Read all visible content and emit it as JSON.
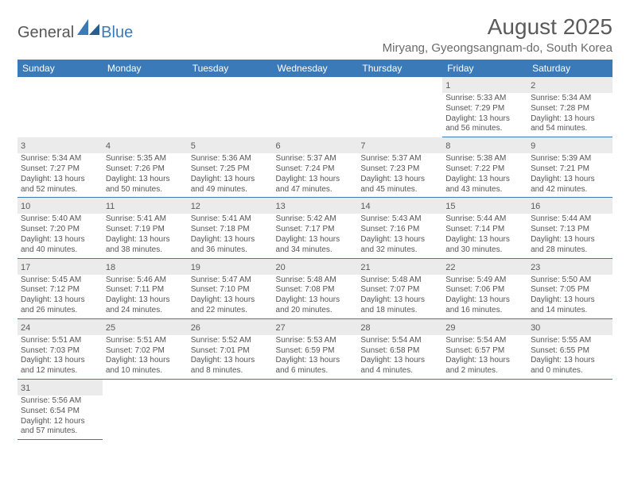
{
  "brand": {
    "part1": "General",
    "part2": "Blue"
  },
  "title": "August 2025",
  "location": "Miryang, Gyeongsangnam-do, South Korea",
  "colors": {
    "header_bg": "#3a7ab8",
    "header_text": "#ffffff",
    "daynum_bg": "#ebebeb",
    "cell_border": "#3a7ab8",
    "text": "#4a4a4a"
  },
  "day_headers": [
    "Sunday",
    "Monday",
    "Tuesday",
    "Wednesday",
    "Thursday",
    "Friday",
    "Saturday"
  ],
  "weeks": [
    [
      null,
      null,
      null,
      null,
      null,
      {
        "n": "1",
        "sr": "5:33 AM",
        "ss": "7:29 PM",
        "dl": "13 hours and 56 minutes."
      },
      {
        "n": "2",
        "sr": "5:34 AM",
        "ss": "7:28 PM",
        "dl": "13 hours and 54 minutes."
      }
    ],
    [
      {
        "n": "3",
        "sr": "5:34 AM",
        "ss": "7:27 PM",
        "dl": "13 hours and 52 minutes."
      },
      {
        "n": "4",
        "sr": "5:35 AM",
        "ss": "7:26 PM",
        "dl": "13 hours and 50 minutes."
      },
      {
        "n": "5",
        "sr": "5:36 AM",
        "ss": "7:25 PM",
        "dl": "13 hours and 49 minutes."
      },
      {
        "n": "6",
        "sr": "5:37 AM",
        "ss": "7:24 PM",
        "dl": "13 hours and 47 minutes."
      },
      {
        "n": "7",
        "sr": "5:37 AM",
        "ss": "7:23 PM",
        "dl": "13 hours and 45 minutes."
      },
      {
        "n": "8",
        "sr": "5:38 AM",
        "ss": "7:22 PM",
        "dl": "13 hours and 43 minutes."
      },
      {
        "n": "9",
        "sr": "5:39 AM",
        "ss": "7:21 PM",
        "dl": "13 hours and 42 minutes."
      }
    ],
    [
      {
        "n": "10",
        "sr": "5:40 AM",
        "ss": "7:20 PM",
        "dl": "13 hours and 40 minutes."
      },
      {
        "n": "11",
        "sr": "5:41 AM",
        "ss": "7:19 PM",
        "dl": "13 hours and 38 minutes."
      },
      {
        "n": "12",
        "sr": "5:41 AM",
        "ss": "7:18 PM",
        "dl": "13 hours and 36 minutes."
      },
      {
        "n": "13",
        "sr": "5:42 AM",
        "ss": "7:17 PM",
        "dl": "13 hours and 34 minutes."
      },
      {
        "n": "14",
        "sr": "5:43 AM",
        "ss": "7:16 PM",
        "dl": "13 hours and 32 minutes."
      },
      {
        "n": "15",
        "sr": "5:44 AM",
        "ss": "7:14 PM",
        "dl": "13 hours and 30 minutes."
      },
      {
        "n": "16",
        "sr": "5:44 AM",
        "ss": "7:13 PM",
        "dl": "13 hours and 28 minutes."
      }
    ],
    [
      {
        "n": "17",
        "sr": "5:45 AM",
        "ss": "7:12 PM",
        "dl": "13 hours and 26 minutes."
      },
      {
        "n": "18",
        "sr": "5:46 AM",
        "ss": "7:11 PM",
        "dl": "13 hours and 24 minutes."
      },
      {
        "n": "19",
        "sr": "5:47 AM",
        "ss": "7:10 PM",
        "dl": "13 hours and 22 minutes."
      },
      {
        "n": "20",
        "sr": "5:48 AM",
        "ss": "7:08 PM",
        "dl": "13 hours and 20 minutes."
      },
      {
        "n": "21",
        "sr": "5:48 AM",
        "ss": "7:07 PM",
        "dl": "13 hours and 18 minutes."
      },
      {
        "n": "22",
        "sr": "5:49 AM",
        "ss": "7:06 PM",
        "dl": "13 hours and 16 minutes."
      },
      {
        "n": "23",
        "sr": "5:50 AM",
        "ss": "7:05 PM",
        "dl": "13 hours and 14 minutes."
      }
    ],
    [
      {
        "n": "24",
        "sr": "5:51 AM",
        "ss": "7:03 PM",
        "dl": "13 hours and 12 minutes."
      },
      {
        "n": "25",
        "sr": "5:51 AM",
        "ss": "7:02 PM",
        "dl": "13 hours and 10 minutes."
      },
      {
        "n": "26",
        "sr": "5:52 AM",
        "ss": "7:01 PM",
        "dl": "13 hours and 8 minutes."
      },
      {
        "n": "27",
        "sr": "5:53 AM",
        "ss": "6:59 PM",
        "dl": "13 hours and 6 minutes."
      },
      {
        "n": "28",
        "sr": "5:54 AM",
        "ss": "6:58 PM",
        "dl": "13 hours and 4 minutes."
      },
      {
        "n": "29",
        "sr": "5:54 AM",
        "ss": "6:57 PM",
        "dl": "13 hours and 2 minutes."
      },
      {
        "n": "30",
        "sr": "5:55 AM",
        "ss": "6:55 PM",
        "dl": "13 hours and 0 minutes."
      }
    ],
    [
      {
        "n": "31",
        "sr": "5:56 AM",
        "ss": "6:54 PM",
        "dl": "12 hours and 57 minutes."
      },
      null,
      null,
      null,
      null,
      null,
      null
    ]
  ],
  "labels": {
    "sunrise": "Sunrise:",
    "sunset": "Sunset:",
    "daylight": "Daylight:"
  }
}
